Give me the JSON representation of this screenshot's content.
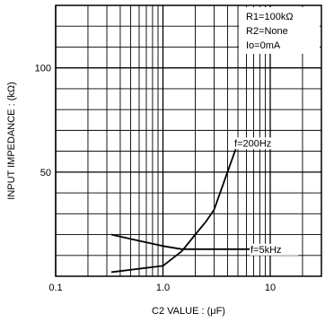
{
  "chart_data": {
    "type": "line",
    "xlabel": "C2 VALUE : (μF)",
    "ylabel": "INPUT IMPEDANCE : (kΩ)",
    "x_scale": "log",
    "xlim": [
      0.1,
      30
    ],
    "ylim": [
      0,
      130
    ],
    "x_ticks": [
      {
        "value": 0.1,
        "label": "0.1"
      },
      {
        "value": 1,
        "label": "1.0"
      },
      {
        "value": 10,
        "label": "10"
      }
    ],
    "y_ticks": [
      {
        "value": 50,
        "label": "50"
      },
      {
        "value": 100,
        "label": "100"
      }
    ],
    "grid": true,
    "legend_position": "top-right",
    "conditions": [
      "R1=100kΩ",
      "R2=None",
      "Io=0mA"
    ],
    "series": [
      {
        "name": "f=200Hz",
        "x": [
          0.33,
          1.0,
          1.5,
          2.0,
          2.5,
          3.0,
          4.0,
          5.0
        ],
        "y": [
          2,
          5,
          12,
          20,
          26,
          32,
          50,
          64
        ]
      },
      {
        "name": "f=5kHz",
        "x": [
          0.33,
          0.6,
          1.0,
          1.5,
          2.0,
          3.0,
          5.0,
          10.0
        ],
        "y": [
          20,
          17,
          14.5,
          13,
          13,
          13,
          13,
          13
        ]
      }
    ]
  }
}
